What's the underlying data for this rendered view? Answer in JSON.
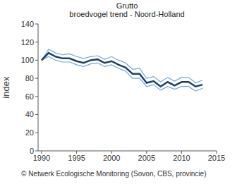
{
  "chart_data": {
    "type": "line",
    "title": "Grutto",
    "subtitle": "broedvogel trend - Noord-Holland",
    "y_label": "index",
    "annotation": "© Netwerk Ecologische Monitoring (Sovon, CBS, provincie)",
    "x": [
      1990,
      1991,
      1992,
      1993,
      1994,
      1995,
      1996,
      1997,
      1998,
      1999,
      2000,
      2001,
      2002,
      2003,
      2004,
      2005,
      2006,
      2007,
      2008,
      2009,
      2010,
      2011,
      2012,
      2013
    ],
    "series": [
      {
        "color": "#6fa8dc",
        "line_style": "solid",
        "values": [
          100,
          112,
          108,
          106,
          107,
          104,
          102,
          104,
          105,
          101,
          104,
          100,
          97,
          90,
          91,
          80,
          82,
          76,
          81,
          77,
          81,
          81,
          75,
          78
        ]
      },
      {
        "color": "#6fa8dc",
        "line_style": "solid",
        "values": [
          100,
          104,
          100,
          98,
          98,
          95,
          93,
          96,
          97,
          93,
          95,
          91,
          88,
          80,
          80,
          71,
          73,
          67,
          71,
          68,
          71,
          71,
          66,
          69
        ]
      },
      {
        "color": "#1f3f66",
        "line_style": "solid",
        "values": [
          100,
          108,
          104,
          102,
          102,
          99,
          97,
          100,
          101,
          97,
          99,
          95,
          92,
          85,
          85,
          75,
          77,
          71,
          76,
          72,
          76,
          76,
          71,
          73
        ]
      }
    ],
    "xlim": [
      1989.5,
      2015
    ],
    "xticks": [
      1990,
      1995,
      2000,
      2005,
      2010,
      2015
    ],
    "ylim": [
      0,
      140
    ],
    "yticks": [
      0,
      20,
      40,
      60,
      80,
      100,
      120,
      140
    ],
    "grid": false
  }
}
